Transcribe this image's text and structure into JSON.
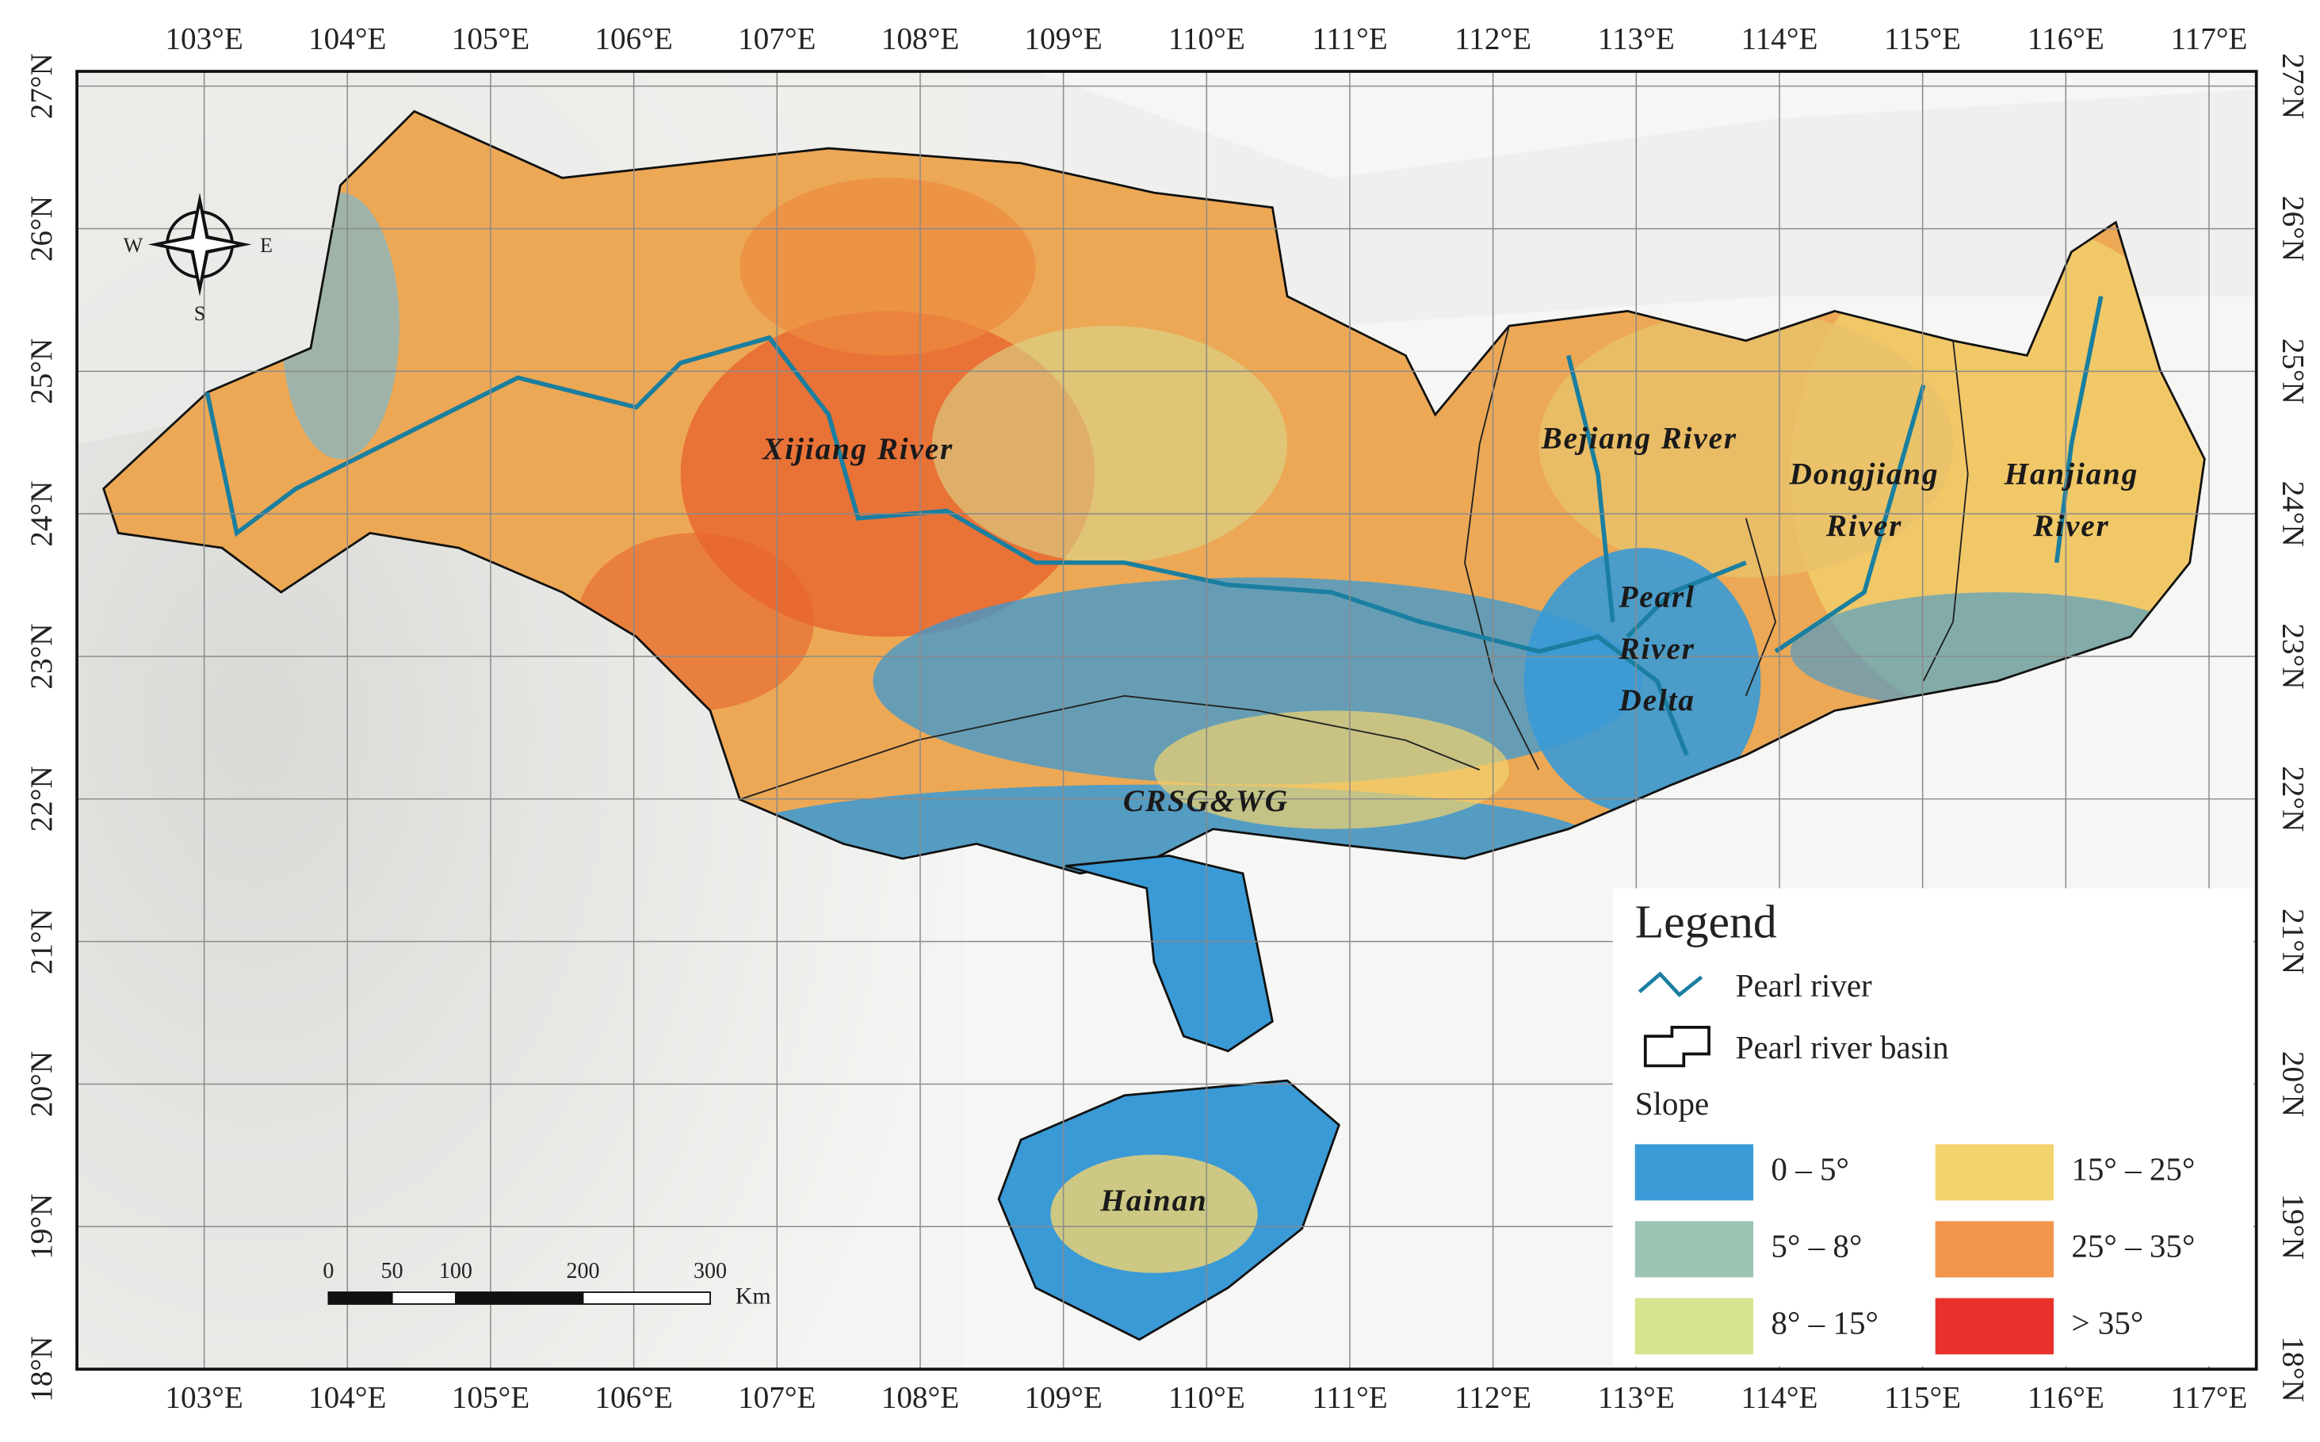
{
  "map": {
    "lon_ticks": [
      {
        "value": 103,
        "label": "103°E"
      },
      {
        "value": 104,
        "label": "104°E"
      },
      {
        "value": 105,
        "label": "105°E"
      },
      {
        "value": 106,
        "label": "106°E"
      },
      {
        "value": 107,
        "label": "107°E"
      },
      {
        "value": 108,
        "label": "108°E"
      },
      {
        "value": 109,
        "label": "109°E"
      },
      {
        "value": 110,
        "label": "110°E"
      },
      {
        "value": 111,
        "label": "111°E"
      },
      {
        "value": 112,
        "label": "112°E"
      },
      {
        "value": 113,
        "label": "113°E"
      },
      {
        "value": 114,
        "label": "114°E"
      },
      {
        "value": 115,
        "label": "115°E"
      },
      {
        "value": 116,
        "label": "116°E"
      },
      {
        "value": 117,
        "label": "117°E"
      }
    ],
    "lat_ticks": [
      {
        "value": 18,
        "label": "18°N"
      },
      {
        "value": 19,
        "label": "19°N"
      },
      {
        "value": 20,
        "label": "20°N"
      },
      {
        "value": 21,
        "label": "21°N"
      },
      {
        "value": 22,
        "label": "22°N"
      },
      {
        "value": 23,
        "label": "23°N"
      },
      {
        "value": 24,
        "label": "24°N"
      },
      {
        "value": 25,
        "label": "25°N"
      },
      {
        "value": 26,
        "label": "26°N"
      },
      {
        "value": 27,
        "label": "27°N"
      }
    ],
    "regions": [
      {
        "lines": [
          "Xijiang River"
        ]
      },
      {
        "lines": [
          "Bejiang River"
        ]
      },
      {
        "lines": [
          "Dongjiang",
          "River"
        ]
      },
      {
        "lines": [
          "Hanjiang",
          "River"
        ]
      },
      {
        "lines": [
          "Pearl",
          "River",
          "Delta"
        ]
      },
      {
        "lines": [
          "CRSG&WG"
        ]
      },
      {
        "lines": [
          "Hainan"
        ]
      }
    ],
    "compass": {
      "west": "W",
      "east": "E",
      "south": "S"
    },
    "scale_bar": {
      "ticks": [
        0,
        50,
        100,
        200,
        300
      ],
      "unit": "Km"
    },
    "legend": {
      "title": "Legend",
      "river": "Pearl river",
      "basin": "Pearl river basin",
      "slope_title": "Slope",
      "classes": [
        {
          "label": "0 – 5°",
          "color": "#3a9ad6"
        },
        {
          "label": "5° – 8°",
          "color": "#9cc4b3"
        },
        {
          "label": "8° – 15°",
          "color": "#d5e58f"
        },
        {
          "label": "15° – 25°",
          "color": "#f2d36e"
        },
        {
          "label": "25° – 35°",
          "color": "#f2944a"
        },
        {
          "label": "> 35°",
          "color": "#e8312a"
        }
      ]
    }
  }
}
